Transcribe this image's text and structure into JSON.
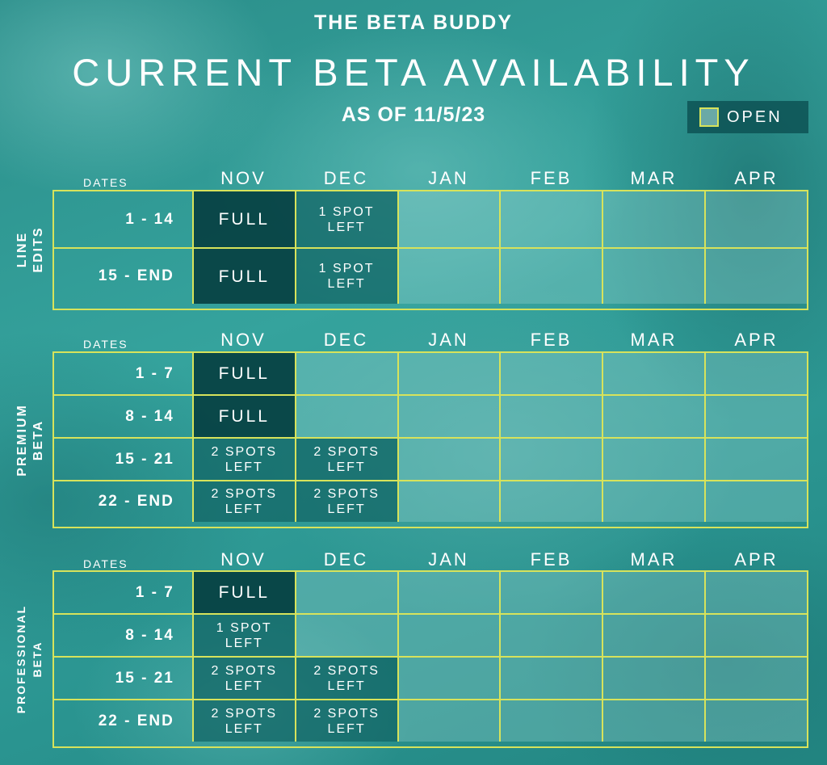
{
  "header": {
    "brand": "THE BETA BUDDY",
    "title": "CURRENT BETA AVAILABILITY",
    "as_of": "AS OF 11/5/23"
  },
  "legend": {
    "label": "OPEN",
    "swatch_color": "#6aa9a6",
    "border_color": "#d7e35b"
  },
  "colors": {
    "grid_line": "#d7e35b",
    "full": "#063e40",
    "partial": "#126464",
    "open": "#8fcbc6"
  },
  "months": [
    "NOV",
    "DEC",
    "JAN",
    "FEB",
    "MAR",
    "APR"
  ],
  "dates_label": "DATES",
  "sections": [
    {
      "name": "LINE\nEDITS",
      "rows": [
        {
          "label": "1 - 14",
          "cells": [
            {
              "text": "FULL",
              "status": "full"
            },
            {
              "text": "1 SPOT\nLEFT",
              "status": "partial"
            },
            {
              "text": "",
              "status": "open"
            },
            {
              "text": "",
              "status": "open"
            },
            {
              "text": "",
              "status": "open"
            },
            {
              "text": "",
              "status": "open"
            }
          ]
        },
        {
          "label": "15 - END",
          "cells": [
            {
              "text": "FULL",
              "status": "full"
            },
            {
              "text": "1 SPOT\nLEFT",
              "status": "partial"
            },
            {
              "text": "",
              "status": "open"
            },
            {
              "text": "",
              "status": "open"
            },
            {
              "text": "",
              "status": "open"
            },
            {
              "text": "",
              "status": "open"
            }
          ]
        }
      ]
    },
    {
      "name": "PREMIUM\nBETA",
      "rows": [
        {
          "label": "1 - 7",
          "cells": [
            {
              "text": "FULL",
              "status": "full"
            },
            {
              "text": "",
              "status": "open"
            },
            {
              "text": "",
              "status": "open"
            },
            {
              "text": "",
              "status": "open"
            },
            {
              "text": "",
              "status": "open"
            },
            {
              "text": "",
              "status": "open"
            }
          ]
        },
        {
          "label": "8 - 14",
          "cells": [
            {
              "text": "FULL",
              "status": "full"
            },
            {
              "text": "",
              "status": "open"
            },
            {
              "text": "",
              "status": "open"
            },
            {
              "text": "",
              "status": "open"
            },
            {
              "text": "",
              "status": "open"
            },
            {
              "text": "",
              "status": "open"
            }
          ]
        },
        {
          "label": "15 - 21",
          "cells": [
            {
              "text": "2 SPOTS\nLEFT",
              "status": "partial"
            },
            {
              "text": "2 SPOTS\nLEFT",
              "status": "partial"
            },
            {
              "text": "",
              "status": "open"
            },
            {
              "text": "",
              "status": "open"
            },
            {
              "text": "",
              "status": "open"
            },
            {
              "text": "",
              "status": "open"
            }
          ]
        },
        {
          "label": "22 - END",
          "cells": [
            {
              "text": "2 SPOTS\nLEFT",
              "status": "partial"
            },
            {
              "text": "2 SPOTS\nLEFT",
              "status": "partial"
            },
            {
              "text": "",
              "status": "open"
            },
            {
              "text": "",
              "status": "open"
            },
            {
              "text": "",
              "status": "open"
            },
            {
              "text": "",
              "status": "open"
            }
          ]
        }
      ]
    },
    {
      "name": "PROFESSIONAL\nBETA",
      "rows": [
        {
          "label": "1 - 7",
          "cells": [
            {
              "text": "FULL",
              "status": "full"
            },
            {
              "text": "",
              "status": "open"
            },
            {
              "text": "",
              "status": "open"
            },
            {
              "text": "",
              "status": "open"
            },
            {
              "text": "",
              "status": "open"
            },
            {
              "text": "",
              "status": "open"
            }
          ]
        },
        {
          "label": "8 - 14",
          "cells": [
            {
              "text": "1 SPOT\nLEFT",
              "status": "partial"
            },
            {
              "text": "",
              "status": "open"
            },
            {
              "text": "",
              "status": "open"
            },
            {
              "text": "",
              "status": "open"
            },
            {
              "text": "",
              "status": "open"
            },
            {
              "text": "",
              "status": "open"
            }
          ]
        },
        {
          "label": "15 - 21",
          "cells": [
            {
              "text": "2 SPOTS\nLEFT",
              "status": "partial"
            },
            {
              "text": "2 SPOTS\nLEFT",
              "status": "partial"
            },
            {
              "text": "",
              "status": "open"
            },
            {
              "text": "",
              "status": "open"
            },
            {
              "text": "",
              "status": "open"
            },
            {
              "text": "",
              "status": "open"
            }
          ]
        },
        {
          "label": "22 - END",
          "cells": [
            {
              "text": "2 SPOTS\nLEFT",
              "status": "partial"
            },
            {
              "text": "2 SPOTS\nLEFT",
              "status": "partial"
            },
            {
              "text": "",
              "status": "open"
            },
            {
              "text": "",
              "status": "open"
            },
            {
              "text": "",
              "status": "open"
            },
            {
              "text": "",
              "status": "open"
            }
          ]
        }
      ]
    }
  ]
}
